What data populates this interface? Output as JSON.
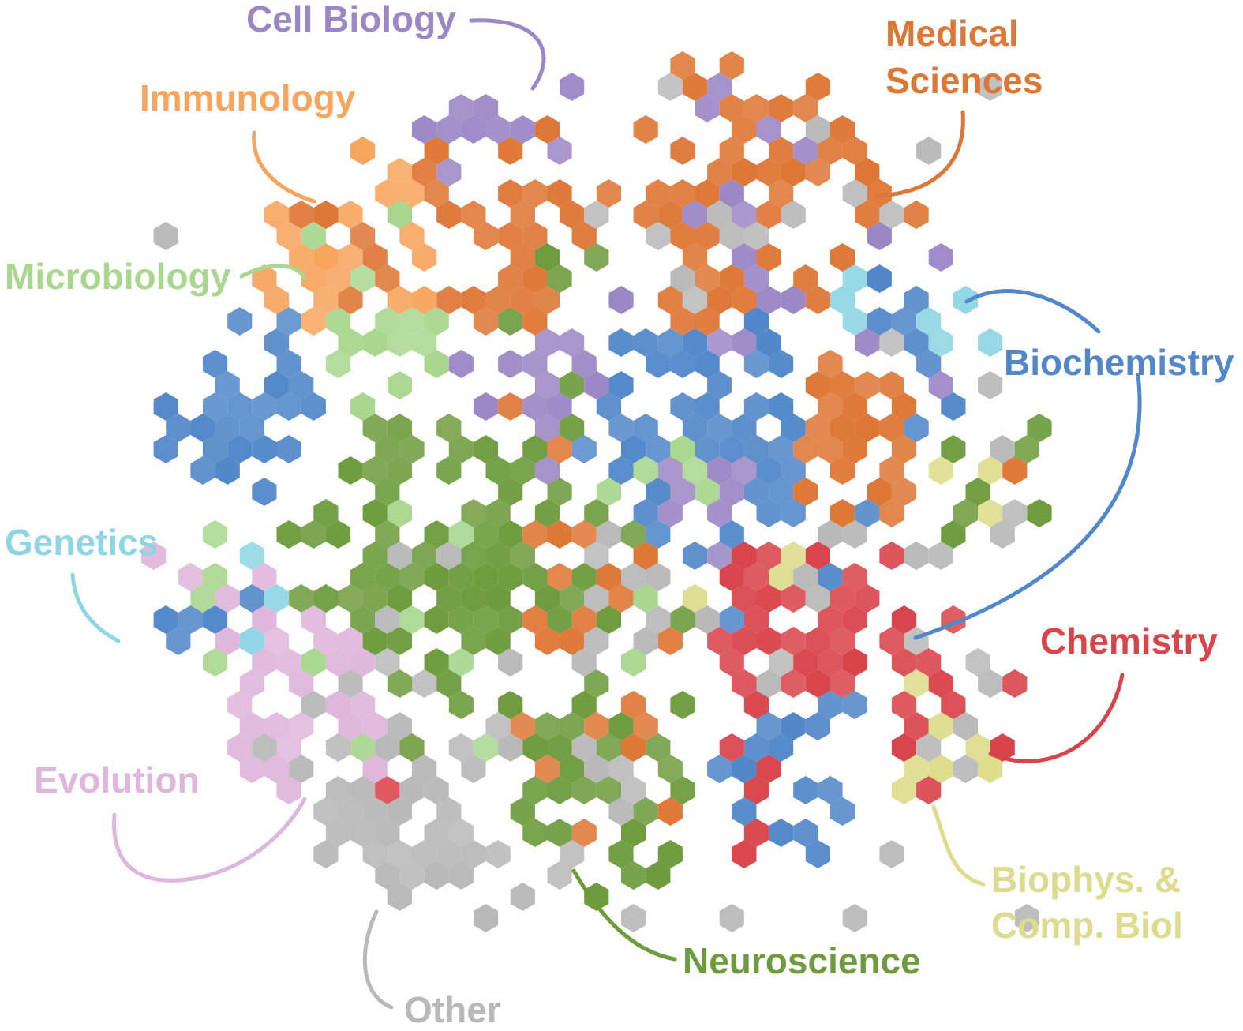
{
  "categories": [
    {
      "key": "cell_biology",
      "label": "Cell Biology",
      "color": "#9b86c6"
    },
    {
      "key": "medical_sciences",
      "label_lines": [
        "Medical",
        "Sciences"
      ],
      "color": "#de7635"
    },
    {
      "key": "immunology",
      "label": "Immunology",
      "color": "#f7a55e"
    },
    {
      "key": "microbiology",
      "label": "Microbiology",
      "color": "#a9d78f"
    },
    {
      "key": "biochemistry",
      "label": "Biochemistry",
      "color": "#5288c9"
    },
    {
      "key": "genetics",
      "label": "Genetics",
      "color": "#8fd6e4"
    },
    {
      "key": "chemistry",
      "label": "Chemistry",
      "color": "#d9434a"
    },
    {
      "key": "evolution",
      "label": "Evolution",
      "color": "#dfb6dc"
    },
    {
      "key": "biophysics",
      "label_lines": [
        "Biophys. &",
        "Comp. Biol"
      ],
      "color": "#dcdc8c"
    },
    {
      "key": "neuroscience",
      "label": "Neuroscience",
      "color": "#6e9b3d"
    },
    {
      "key": "other",
      "label": "Other",
      "color": "#b9b9b9"
    }
  ]
}
